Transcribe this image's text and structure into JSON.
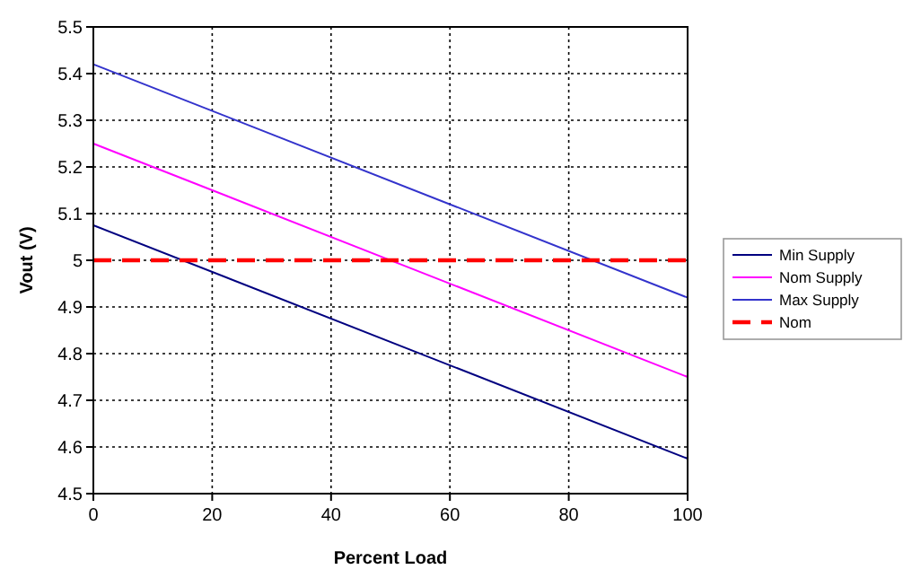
{
  "chart_data": {
    "type": "line",
    "xlabel": "Percent Load",
    "ylabel": "Vout (V)",
    "xlim": [
      0,
      100
    ],
    "xticks": [
      0,
      20,
      40,
      60,
      80,
      100
    ],
    "ylim": [
      4.5,
      5.5
    ],
    "yticks": [
      4.5,
      4.6,
      4.7,
      4.8,
      4.9,
      5,
      5.1,
      5.2,
      5.3,
      5.4,
      5.5
    ],
    "x": [
      0,
      100
    ],
    "grid": true,
    "legend": "right",
    "marker": "none",
    "series": [
      {
        "name": "Min Supply",
        "color": "#000080",
        "values": [
          5.075,
          4.575
        ]
      },
      {
        "name": "Nom Supply",
        "color": "#ff00ff",
        "values": [
          5.25,
          4.75
        ]
      },
      {
        "name": "Max Supply",
        "color": "#3333cc",
        "values": [
          5.42,
          4.92
        ]
      },
      {
        "name": "Nom",
        "color": "#ff0000",
        "values": [
          5,
          5
        ],
        "line_style": "dashed"
      }
    ]
  }
}
